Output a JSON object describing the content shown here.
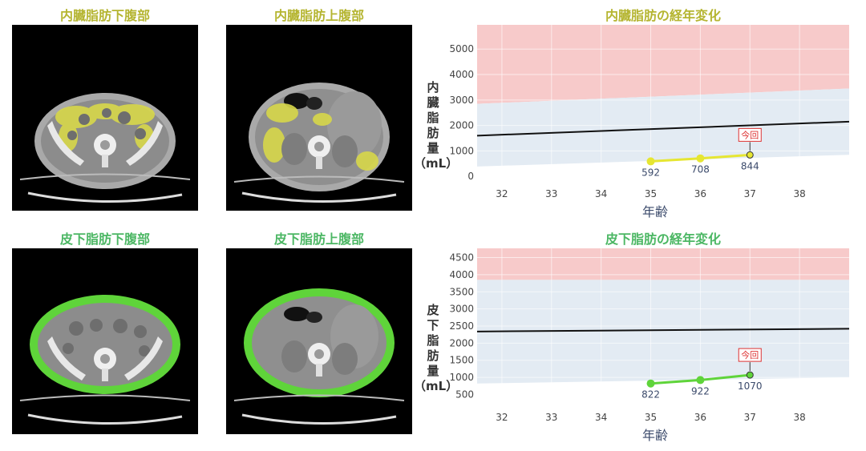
{
  "panels": {
    "visceral_lower": "内臓脂肪下腹部",
    "visceral_upper": "内臓脂肪上腹部",
    "subcut_lower": "皮下脂肪下腹部",
    "subcut_upper": "皮下脂肪上腹部"
  },
  "colors": {
    "yellow": "#e6e632",
    "green": "#5fd43a",
    "red_band": "#f7caca",
    "blue_band": "#e3ebf3"
  },
  "chart_data": [
    {
      "type": "line",
      "title": "内臓脂肪の経年変化",
      "ylabel_chars": [
        "内",
        "臓",
        "脂",
        "肪",
        "量",
        "（mL）"
      ],
      "xlabel": "年齢",
      "x": [
        35,
        36,
        37
      ],
      "values": [
        592,
        708,
        844
      ],
      "labels": [
        "592",
        "708",
        "844"
      ],
      "xlim": [
        31.5,
        39
      ],
      "ylim": [
        -150,
        5950
      ],
      "xticks": [
        32,
        33,
        34,
        35,
        36,
        37,
        38
      ],
      "yticks": [
        0,
        1000,
        2000,
        3000,
        4000,
        5000
      ],
      "reference_line": {
        "x": [
          31.5,
          39
        ],
        "y": [
          1600,
          2150
        ]
      },
      "blue_band": {
        "x": [
          31.5,
          39
        ],
        "lower": [
          390,
          850
        ],
        "upper": [
          2850,
          3450
        ]
      },
      "red_band": {
        "x": [
          31.5,
          39
        ],
        "lower": [
          2850,
          3450
        ],
        "upper": [
          5950,
          5950
        ]
      },
      "current_marker": "今回",
      "series_color": "#e6e632",
      "grid": true
    },
    {
      "type": "line",
      "title": "皮下脂肪の経年変化",
      "ylabel_chars": [
        "皮",
        "下",
        "脂",
        "肪",
        "量",
        "（mL）"
      ],
      "xlabel": "年齢",
      "x": [
        35,
        36,
        37
      ],
      "values": [
        822,
        922,
        1070
      ],
      "labels": [
        "822",
        "922",
        "1070"
      ],
      "xlim": [
        31.5,
        39
      ],
      "ylim": [
        230,
        4770
      ],
      "xticks": [
        32,
        33,
        34,
        35,
        36,
        37,
        38
      ],
      "yticks": [
        500,
        1000,
        1500,
        2000,
        2500,
        3000,
        3500,
        4000,
        4500
      ],
      "reference_line": {
        "x": [
          31.5,
          39
        ],
        "y": [
          2340,
          2420
        ]
      },
      "blue_band": {
        "x": [
          31.5,
          39
        ],
        "lower": [
          820,
          1000
        ],
        "upper": [
          3850,
          3850
        ]
      },
      "red_band": {
        "x": [
          31.5,
          39
        ],
        "lower": [
          3850,
          3850
        ],
        "upper": [
          4770,
          4770
        ]
      },
      "current_marker": "今回",
      "series_color": "#5fd43a",
      "grid": true
    }
  ]
}
